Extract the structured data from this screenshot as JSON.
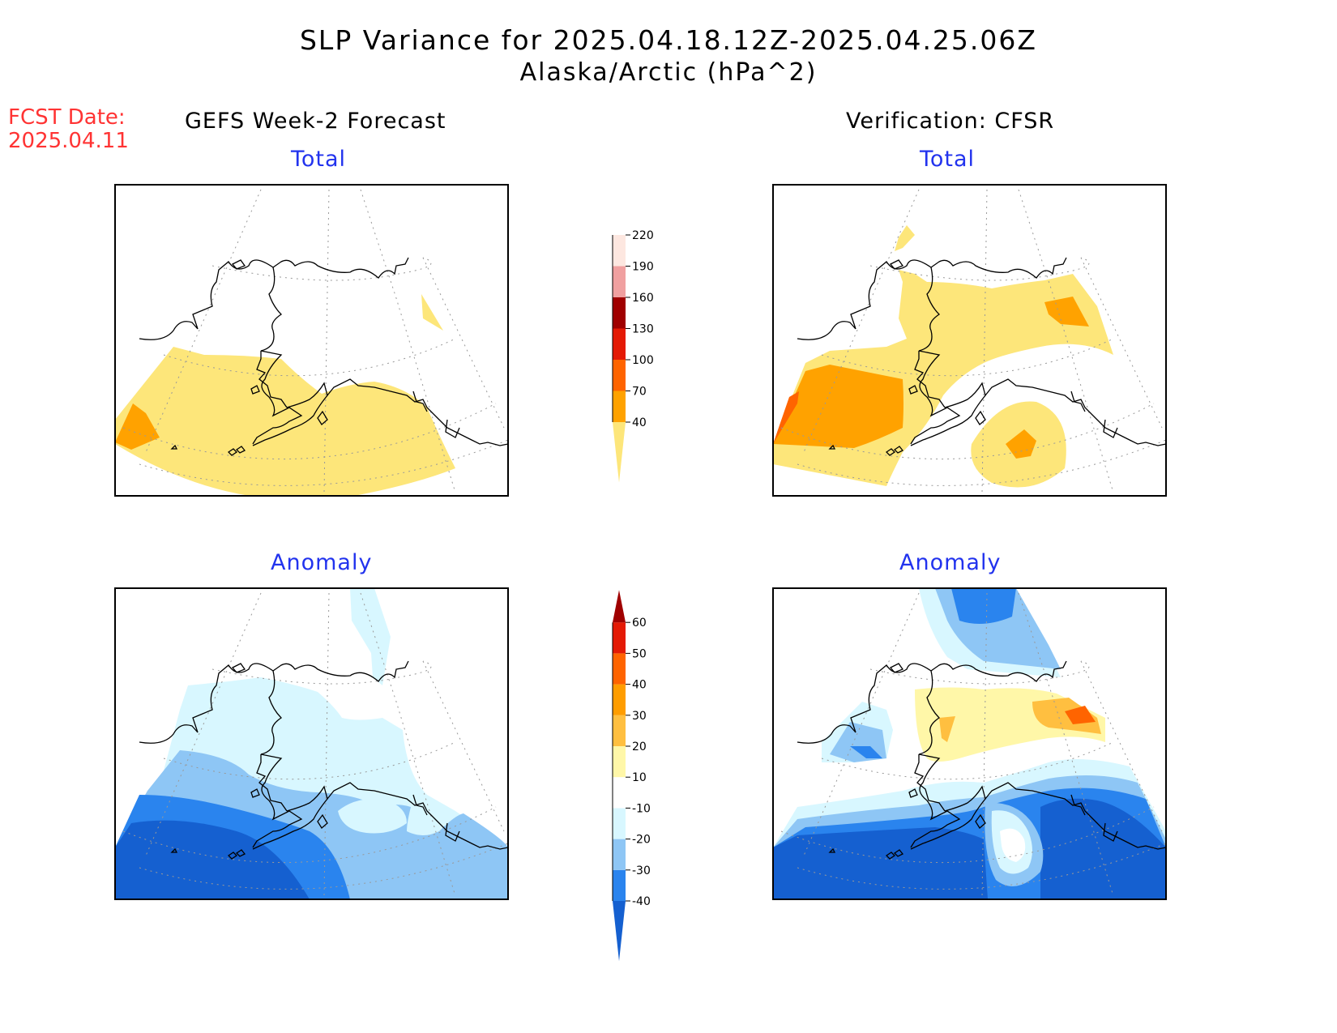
{
  "title": {
    "line1": "SLP Variance for 2025.04.18.12Z-2025.04.25.06Z",
    "line2": "Alaska/Arctic (hPa^2)"
  },
  "fcst": {
    "label": "FCST Date:",
    "date": "2025.04.11"
  },
  "columns": {
    "left": "GEFS Week-2 Forecast",
    "right": "Verification: CFSR"
  },
  "panels": {
    "forecast_total": "Total",
    "verification_total": "Total",
    "forecast_anomaly": "Anomaly",
    "verification_anomaly": "Anomaly"
  },
  "colorbars": {
    "total": {
      "levels": [
        "40",
        "70",
        "100",
        "130",
        "160",
        "190",
        "220"
      ],
      "colors": [
        "#fde67a",
        "#ffa200",
        "#ff6400",
        "#e41a05",
        "#a00000",
        "#f0a0a0",
        "#fde7e0"
      ]
    },
    "anomaly": {
      "levels": [
        "-40",
        "-30",
        "-20",
        "-10",
        "10",
        "20",
        "30",
        "40",
        "50",
        "60"
      ],
      "colors": [
        "#1560d0",
        "#2a84ee",
        "#8ec6f5",
        "#d8f7ff",
        "#ffffff",
        "#fff7a8",
        "#ffbf40",
        "#ff9d00",
        "#ff6400",
        "#e41a05",
        "#a00000"
      ]
    }
  },
  "legend_colors": {
    "forecast_total_fill": "#fde67a",
    "orange": "#ffa200",
    "dark_blue": "#1560d0",
    "mid_blue": "#2a84ee",
    "light_blue": "#8ec6f5",
    "pale_blue": "#d8f7ff"
  }
}
